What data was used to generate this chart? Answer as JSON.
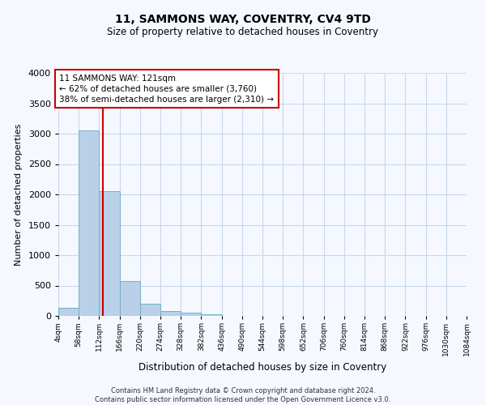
{
  "title": "11, SAMMONS WAY, COVENTRY, CV4 9TD",
  "subtitle": "Size of property relative to detached houses in Coventry",
  "xlabel": "Distribution of detached houses by size in Coventry",
  "ylabel": "Number of detached properties",
  "footer_line1": "Contains HM Land Registry data © Crown copyright and database right 2024.",
  "footer_line2": "Contains public sector information licensed under the Open Government Licence v3.0.",
  "property_size": 121,
  "bin_edges": [
    4,
    58,
    112,
    166,
    220,
    274,
    328,
    382,
    436,
    490,
    544,
    598,
    652,
    706,
    760,
    814,
    868,
    922,
    976,
    1030,
    1084
  ],
  "bin_counts": [
    130,
    3060,
    2060,
    570,
    200,
    80,
    55,
    30,
    5,
    3,
    0,
    0,
    0,
    0,
    0,
    0,
    0,
    0,
    0,
    0
  ],
  "bar_color": "#b8d0e8",
  "bar_edge_color": "#7aaec8",
  "vline_color": "#cc0000",
  "vline_x": 121,
  "annotation_line1": "11 SAMMONS WAY: 121sqm",
  "annotation_line2": "← 62% of detached houses are smaller (3,760)",
  "annotation_line3": "38% of semi-detached houses are larger (2,310) →",
  "annotation_box_color": "#cc0000",
  "ylim": [
    0,
    4000
  ],
  "background_color": "#f5f8ff",
  "grid_color": "#c8d8ec",
  "tick_labels": [
    "4sqm",
    "58sqm",
    "112sqm",
    "166sqm",
    "220sqm",
    "274sqm",
    "328sqm",
    "382sqm",
    "436sqm",
    "490sqm",
    "544sqm",
    "598sqm",
    "652sqm",
    "706sqm",
    "760sqm",
    "814sqm",
    "868sqm",
    "922sqm",
    "976sqm",
    "1030sqm",
    "1084sqm"
  ],
  "yticks": [
    0,
    500,
    1000,
    1500,
    2000,
    2500,
    3000,
    3500,
    4000
  ]
}
